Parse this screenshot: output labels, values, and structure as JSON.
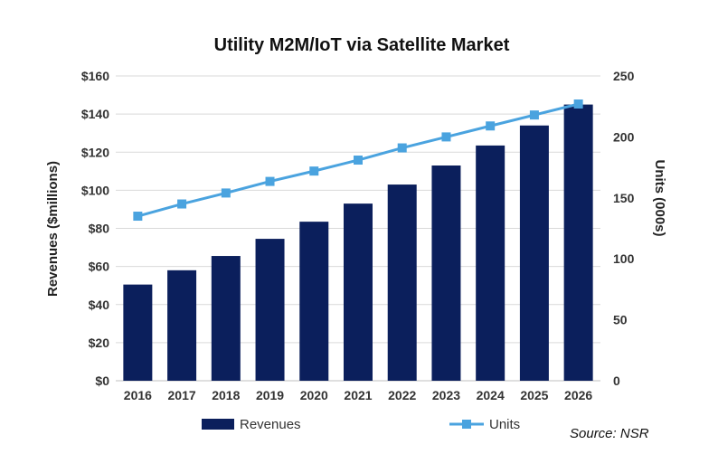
{
  "chart_data": {
    "type": "bar+line",
    "title": "Utility M2M/IoT via Satellite Market",
    "categories": [
      "2016",
      "2017",
      "2018",
      "2019",
      "2020",
      "2021",
      "2022",
      "2023",
      "2024",
      "2025",
      "2026"
    ],
    "series": [
      {
        "name": "Revenues",
        "type": "bar",
        "axis": "left",
        "color": "#0b1f5c",
        "values": [
          50.5,
          58,
          65.5,
          74.5,
          83.5,
          93,
          103,
          113,
          123.5,
          134,
          145
        ]
      },
      {
        "name": "Units",
        "type": "line",
        "axis": "right",
        "color": "#4aa3df",
        "values": [
          135,
          145,
          154,
          163.5,
          172,
          181,
          191,
          200,
          209,
          218,
          227
        ]
      }
    ],
    "ylabel": "Revenues ($millions)",
    "y2label": "Units (000s)",
    "ylim": [
      0,
      160
    ],
    "y2lim": [
      0,
      250
    ],
    "yticks": [
      "$0",
      "$20",
      "$40",
      "$60",
      "$80",
      "$100",
      "$120",
      "$140",
      "$160"
    ],
    "y2ticks": [
      "0",
      "50",
      "100",
      "150",
      "200",
      "250"
    ],
    "grid": true,
    "legend_position": "bottom",
    "source": "Source: NSR"
  }
}
